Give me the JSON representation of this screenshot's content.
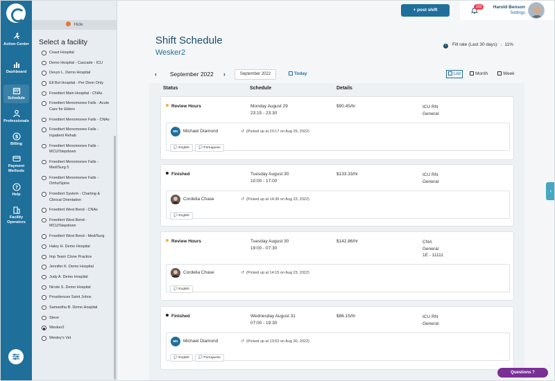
{
  "nav": {
    "items": [
      {
        "label": "Action Center",
        "icon": "running-person-icon"
      },
      {
        "label": "Dashboard",
        "icon": "bar-chart-icon"
      },
      {
        "label": "Schedule",
        "icon": "calendar-icon"
      },
      {
        "label": "Professionals",
        "icon": "person-icon"
      },
      {
        "label": "Billing",
        "icon": "dollar-icon"
      },
      {
        "label": "Payment Methods",
        "icon": "credit-card-icon"
      },
      {
        "label": "Help",
        "icon": "question-icon"
      },
      {
        "label": "Facility Operators",
        "icon": "building-icon"
      }
    ],
    "active": "Schedule"
  },
  "facility_panel": {
    "hide_label": "Hide",
    "title": "Select a facility",
    "facilities": [
      "Coast Hospital",
      "Demo Hospital - Cascade - ICU",
      "Devyn L. Demo Hospital",
      "Elt Bol Hospital - Per Diem Only",
      "Froedtert Main Hospital - CNAs",
      "Froedtert Menomonee Falls - Acute Care for Elders",
      "Froedtert Menomonee Falls - CNAs",
      "Froedtert Menomonee Falls - Inpatient Rehab",
      "Froedtert Menomonee Falls - MCU/Stepdown",
      "Froedtert Menomonee Falls - Med/Surg 5",
      "Froedtert Menomonee Falls - Ortho/Spine",
      "Froedtert System - Charting & Clinical Orientation",
      "Froedtert West Bend - CNAs",
      "Froedtert West Bend - MCU/Stepdown",
      "Froedtert West Bend - Med/Surg",
      "Haley H. Demo Hospital",
      "Imp Team Clone Practice",
      "Jennifer K. Demo Hospital",
      "Judy A. Demo Hospital",
      "Nicole S. Demo Hospital",
      "Providences Saint Johns",
      "Samantha B. Demo Hospital",
      "Steve",
      "Wesker2",
      "Wesley's Vet"
    ],
    "selected": "Wesker2"
  },
  "header": {
    "post_shift_label": "+ post shift",
    "notification_count": "133",
    "user_name": "Harold Benson",
    "settings_label": "Settings"
  },
  "page": {
    "title": "Shift Schedule",
    "facility": "Wesker2",
    "fill_rate_label": "Fill rate (Last 30 days):",
    "fill_rate_value": "11%"
  },
  "datebar": {
    "month_label": "September 2022",
    "month_select": "September 2022",
    "today_label": "Today",
    "views": [
      "List",
      "Month",
      "Week"
    ],
    "active_view": "List"
  },
  "table": {
    "columns": [
      "Status",
      "Schedule",
      "Details"
    ],
    "shifts": [
      {
        "status": "Review Hours",
        "status_color": "#f2b233",
        "day": "Monday August 29",
        "time": "23:15 - 23:30",
        "rate": "$90.45/hr",
        "role": [
          "ICU RN",
          "General"
        ],
        "worker": {
          "initials": "MD",
          "name": "Michael Diamond",
          "picked_up": "(Picked up at 23:17 on Aug 29, 2022)",
          "languages": [
            "English",
            "Portuguese"
          ]
        }
      },
      {
        "status": "Finished",
        "status_color": "#222222",
        "day": "Tuesday August 30",
        "time": "10:00 - 17:00",
        "rate": "$133.33/hr",
        "role": [
          "ICU RN",
          "General"
        ],
        "worker": {
          "initials": "",
          "name": "Cordelia Chase",
          "picked_up": "(Picked up at 14:36 on Aug 23, 2022)",
          "languages": [
            "English"
          ]
        }
      },
      {
        "status": "Review Hours",
        "status_color": "#f2b233",
        "day": "Tuesday August 30",
        "time": "19:00 - 07:30",
        "rate": "$142.86/hr",
        "role": [
          "CNA",
          "General",
          "1E - 11111"
        ],
        "worker": {
          "initials": "",
          "name": "Cordelia Chase",
          "picked_up": "(Picked up at 14:15 on Aug 23, 2022)",
          "languages": [
            "English"
          ]
        }
      },
      {
        "status": "Finished",
        "status_color": "#222222",
        "day": "Wednesday August 31",
        "time": "07:00 - 19:30",
        "rate": "$86.15/hr",
        "role": [
          "ICU RN",
          "General"
        ],
        "worker": {
          "initials": "MD",
          "name": "Michael Diamond",
          "picked_up": "(Picked up at 13:53 on Aug 30, 2022)",
          "languages": [
            "English",
            "Portuguese"
          ]
        }
      }
    ]
  },
  "questions_label": "Questions",
  "colors": {
    "primary": "#1f6f9b",
    "accent": "#e8743b",
    "badge": "#e8445a",
    "questions": "#7a2f95"
  }
}
